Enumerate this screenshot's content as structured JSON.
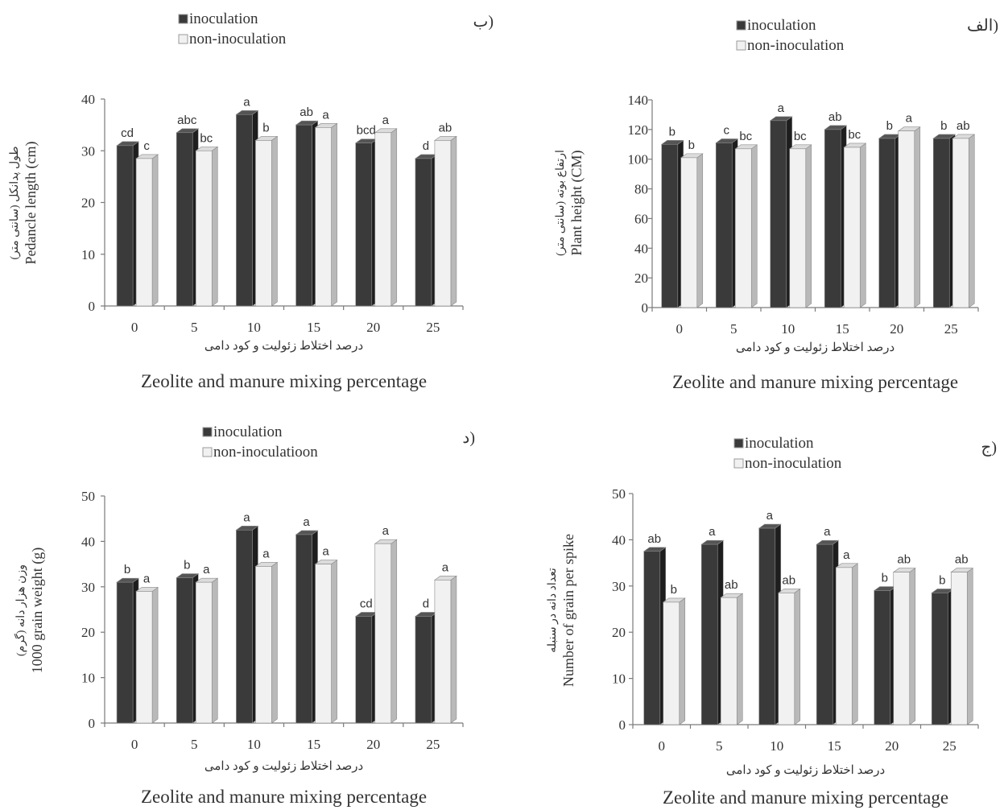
{
  "figure": {
    "xlabel_fa": "درصد اختلاط زئولیت و کود دامی",
    "xlabel_en": "Zeolite and manure mixing  percentage"
  },
  "colors": {
    "inoculation": "#3a3a3a",
    "non_inoculation": "#f1f1f1"
  },
  "chart_data": [
    {
      "type": "bar",
      "panel": "الف)",
      "categories": [
        "0",
        "5",
        "10",
        "15",
        "20",
        "25"
      ],
      "ylabel_fa": "ارتفاع بوته (سانتی متر)",
      "ylabel_en": "Plant height (CM)",
      "ylim": [
        0,
        140
      ],
      "yticks": [
        0,
        20,
        40,
        60,
        80,
        100,
        120,
        140
      ],
      "legend": [
        "inoculation",
        "non-inoculation"
      ],
      "series": [
        {
          "name": "inoculation",
          "values": [
            110,
            111,
            126,
            120,
            114,
            114
          ],
          "labels": [
            "b",
            "c",
            "a",
            "ab",
            "b",
            "b"
          ]
        },
        {
          "name": "non-inoculation",
          "values": [
            101,
            107,
            107,
            108,
            119,
            114
          ],
          "labels": [
            "b",
            "bc",
            "bc",
            "bc",
            "a",
            "ab"
          ]
        }
      ]
    },
    {
      "type": "bar",
      "panel": "ب)",
      "categories": [
        "0",
        "5",
        "10",
        "15",
        "20",
        "25"
      ],
      "ylabel_fa": "طول پدانکل (سانتی متر)",
      "ylabel_en": "Pedancle length (cm)",
      "ylim": [
        0,
        40
      ],
      "yticks": [
        0,
        10,
        20,
        30,
        40
      ],
      "legend": [
        "inoculation",
        "non-inoculation"
      ],
      "series": [
        {
          "name": "inoculation",
          "values": [
            31,
            33.5,
            37,
            35,
            31.5,
            28.5
          ],
          "labels": [
            "cd",
            "abc",
            "a",
            "ab",
            "bcd",
            "d"
          ]
        },
        {
          "name": "non-inoculation",
          "values": [
            28.5,
            30,
            32,
            34.5,
            33.5,
            32
          ],
          "labels": [
            "c",
            "bc",
            "b",
            "a",
            "a",
            "ab"
          ]
        }
      ]
    },
    {
      "type": "bar",
      "panel": "ج)",
      "categories": [
        "0",
        "5",
        "10",
        "15",
        "20",
        "25"
      ],
      "ylabel_fa": "تعداد دانه در سنبله",
      "ylabel_en": "Number of grain per spike",
      "ylim": [
        0,
        50
      ],
      "yticks": [
        0,
        10,
        20,
        30,
        40,
        50
      ],
      "legend": [
        "inoculation",
        "non-inoculation"
      ],
      "series": [
        {
          "name": "inoculation",
          "values": [
            37.5,
            39,
            42.5,
            39,
            29,
            28.5
          ],
          "labels": [
            "ab",
            "a",
            "a",
            "a",
            "b",
            "b"
          ]
        },
        {
          "name": "non-inoculation",
          "values": [
            26.5,
            27.5,
            28.5,
            34,
            33,
            33
          ],
          "labels": [
            "b",
            "ab",
            "ab",
            "a",
            "ab",
            "ab"
          ]
        }
      ]
    },
    {
      "type": "bar",
      "panel": "د)",
      "categories": [
        "0",
        "5",
        "10",
        "15",
        "20",
        "25"
      ],
      "ylabel_fa": "وزن هزار دانه (گرم)",
      "ylabel_en": "1000  grain weight (g)",
      "ylim": [
        0,
        50
      ],
      "yticks": [
        0,
        10,
        20,
        30,
        40,
        50
      ],
      "legend": [
        "inoculation",
        "non-inoculatioon"
      ],
      "series": [
        {
          "name": "inoculation",
          "values": [
            31,
            32,
            42.5,
            41.5,
            23.5,
            23.5
          ],
          "labels": [
            "b",
            "b",
            "a",
            "a",
            "cd",
            "d"
          ]
        },
        {
          "name": "non-inoculation",
          "values": [
            29,
            31,
            34.5,
            35,
            39.5,
            31.5
          ],
          "labels": [
            "a",
            "a",
            "a",
            "a",
            "a",
            "a"
          ]
        }
      ]
    }
  ]
}
